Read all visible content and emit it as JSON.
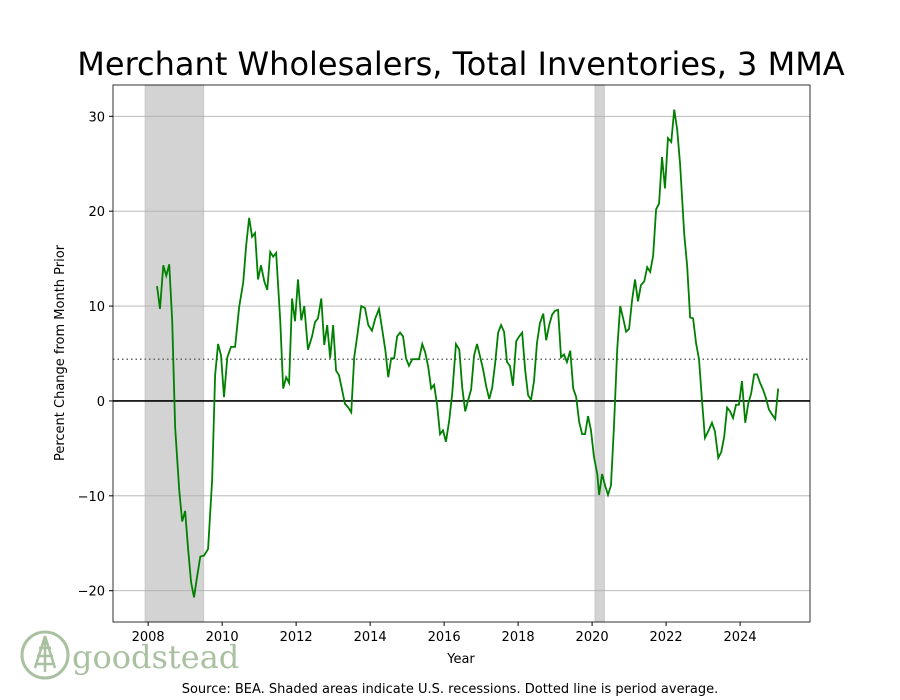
{
  "chart_data": {
    "type": "line",
    "title": "Merchant Wholesalers, Total Inventories, 3 MMA",
    "xlabel": "Year",
    "ylabel": "Percent Change from Month Prior",
    "footnote": "Source: BEA. Shaded areas indicate U.S. recessions. Dotted line is period average.",
    "logo": "goodstead",
    "color": "#008000",
    "xlim": [
      2007.05,
      2025.89
    ],
    "ylim": [
      -23.3,
      33.3
    ],
    "xticks": [
      2008,
      2010,
      2012,
      2014,
      2016,
      2018,
      2020,
      2022,
      2024
    ],
    "yticks": [
      {
        "value": -20,
        "label": "−20"
      },
      {
        "value": -10,
        "label": "−10"
      },
      0,
      10,
      20,
      30
    ],
    "grid": true,
    "average": 4.4,
    "recessions": [
      [
        2007.92,
        2009.5
      ],
      [
        2020.08,
        2020.33
      ]
    ],
    "x": [
      2008.24,
      2008.32,
      2008.41,
      2008.49,
      2008.57,
      2008.65,
      2008.73,
      2008.84,
      2008.92,
      2009.0,
      2009.08,
      2009.16,
      2009.24,
      2009.32,
      2009.41,
      2009.51,
      2009.62,
      2009.73,
      2009.81,
      2009.89,
      2009.97,
      2010.05,
      2010.14,
      2010.24,
      2010.35,
      2010.46,
      2010.57,
      2010.65,
      2010.73,
      2010.81,
      2010.89,
      2010.97,
      2011.05,
      2011.14,
      2011.22,
      2011.3,
      2011.38,
      2011.46,
      2011.57,
      2011.65,
      2011.73,
      2011.81,
      2011.89,
      2011.97,
      2012.05,
      2012.14,
      2012.22,
      2012.32,
      2012.43,
      2012.51,
      2012.59,
      2012.68,
      2012.76,
      2012.84,
      2012.92,
      2013.0,
      2013.08,
      2013.16,
      2013.24,
      2013.32,
      2013.41,
      2013.49,
      2013.57,
      2013.65,
      2013.76,
      2013.86,
      2013.95,
      2014.05,
      2014.14,
      2014.24,
      2014.32,
      2014.41,
      2014.49,
      2014.57,
      2014.65,
      2014.73,
      2014.81,
      2014.89,
      2014.97,
      2015.05,
      2015.14,
      2015.24,
      2015.32,
      2015.41,
      2015.49,
      2015.57,
      2015.65,
      2015.73,
      2015.81,
      2015.89,
      2015.97,
      2016.05,
      2016.14,
      2016.22,
      2016.32,
      2016.41,
      2016.49,
      2016.57,
      2016.65,
      2016.73,
      2016.81,
      2016.89,
      2016.97,
      2017.05,
      2017.14,
      2017.22,
      2017.3,
      2017.38,
      2017.46,
      2017.54,
      2017.62,
      2017.7,
      2017.78,
      2017.86,
      2017.95,
      2018.03,
      2018.11,
      2018.19,
      2018.27,
      2018.35,
      2018.43,
      2018.51,
      2018.59,
      2018.68,
      2018.76,
      2018.84,
      2018.92,
      2019.0,
      2019.08,
      2019.16,
      2019.24,
      2019.32,
      2019.41,
      2019.49,
      2019.57,
      2019.65,
      2019.73,
      2019.81,
      2019.89,
      2019.97,
      2020.05,
      2020.14,
      2020.19,
      2020.27,
      2020.35,
      2020.43,
      2020.51,
      2020.59,
      2020.68,
      2020.76,
      2020.84,
      2020.92,
      2021.0,
      2021.08,
      2021.16,
      2021.24,
      2021.32,
      2021.41,
      2021.49,
      2021.57,
      2021.65,
      2021.73,
      2021.81,
      2021.89,
      2021.97,
      2022.05,
      2022.14,
      2022.22,
      2022.3,
      2022.38,
      2022.49,
      2022.57,
      2022.65,
      2022.73,
      2022.81,
      2022.89,
      2022.97,
      2023.05,
      2023.14,
      2023.24,
      2023.32,
      2023.41,
      2023.49,
      2023.57,
      2023.65,
      2023.73,
      2023.81,
      2023.89,
      2023.97,
      2024.05,
      2024.14,
      2024.22,
      2024.3,
      2024.38,
      2024.46,
      2024.54,
      2024.62,
      2024.7,
      2024.78,
      2024.86,
      2024.95,
      2025.03
    ],
    "values": [
      12.1,
      9.7,
      14.3,
      13.2,
      14.4,
      8.5,
      -2.8,
      -9.4,
      -12.7,
      -11.6,
      -15.6,
      -19.1,
      -20.7,
      -18.6,
      -16.4,
      -16.3,
      -15.6,
      -8.3,
      2.7,
      6.0,
      4.8,
      0.4,
      4.6,
      5.7,
      5.7,
      9.9,
      12.5,
      16.4,
      19.3,
      17.3,
      17.7,
      12.8,
      14.3,
      12.6,
      11.7,
      15.7,
      15.2,
      15.6,
      8.5,
      1.3,
      2.5,
      1.9,
      10.8,
      8.4,
      12.8,
      8.5,
      10.0,
      5.4,
      6.8,
      8.3,
      8.7,
      10.8,
      5.9,
      8.0,
      4.5,
      8.0,
      3.2,
      2.7,
      1.2,
      -0.3,
      -0.7,
      -1.2,
      4.6,
      6.8,
      10.0,
      9.8,
      8.0,
      7.4,
      8.7,
      9.7,
      7.7,
      5.4,
      2.5,
      4.5,
      4.5,
      6.8,
      7.2,
      6.8,
      4.5,
      3.7,
      4.4,
      4.4,
      4.4,
      6.0,
      5.1,
      3.6,
      1.3,
      1.7,
      -0.4,
      -3.5,
      -3.1,
      -4.3,
      -2.0,
      0.8,
      6.0,
      5.4,
      1.4,
      -1.1,
      0.1,
      1.2,
      4.8,
      6.0,
      4.7,
      3.4,
      1.5,
      0.2,
      1.4,
      4.0,
      7.2,
      8.0,
      7.3,
      4.1,
      3.7,
      1.6,
      6.3,
      6.8,
      7.2,
      3.3,
      0.6,
      0.1,
      2.1,
      6.1,
      8.2,
      9.2,
      6.4,
      8.0,
      9.1,
      9.5,
      9.6,
      4.6,
      4.9,
      4.1,
      5.3,
      1.3,
      0.4,
      -2.2,
      -3.5,
      -3.5,
      -1.6,
      -3.1,
      -5.9,
      -7.7,
      -9.9,
      -7.7,
      -8.9,
      -9.9,
      -8.9,
      -2.8,
      5.5,
      10.0,
      8.7,
      7.3,
      7.6,
      10.6,
      12.8,
      10.5,
      12.2,
      12.6,
      14.1,
      13.6,
      15.3,
      20.2,
      20.8,
      25.7,
      22.4,
      27.7,
      27.3,
      30.7,
      28.6,
      24.9,
      17.6,
      14.2,
      8.8,
      8.7,
      6.1,
      4.4,
      0.1,
      -3.9,
      -3.2,
      -2.3,
      -3.2,
      -6.0,
      -5.4,
      -3.8,
      -0.7,
      -1.1,
      -1.8,
      -0.4,
      -0.4,
      2.1,
      -2.3,
      -0.3,
      0.8,
      2.8,
      2.8,
      1.9,
      1.2,
      0.3,
      -0.9,
      -1.4,
      -1.9,
      1.3
    ]
  }
}
